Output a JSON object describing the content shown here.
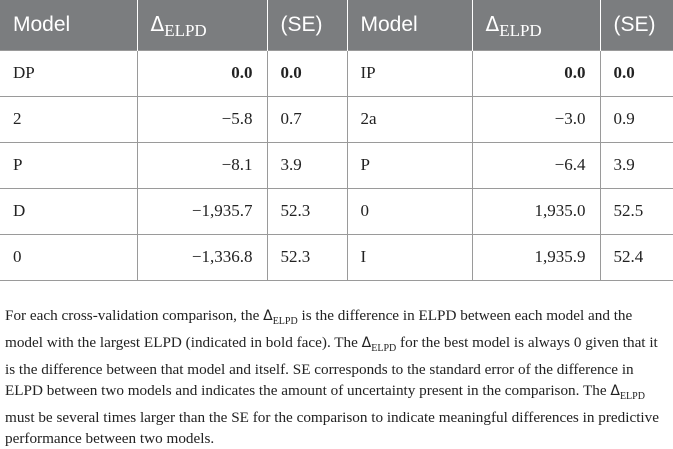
{
  "table": {
    "headers": [
      "Model",
      "Δ",
      "ELPD",
      "(SE)",
      "Model",
      "Δ",
      "ELPD",
      "(SE)"
    ],
    "rows": [
      [
        "DP",
        "0.0",
        "0.0",
        "IP",
        "0.0",
        "0.0"
      ],
      [
        "2",
        "−5.8",
        "0.7",
        "2a",
        "−3.0",
        "0.9"
      ],
      [
        "P",
        "−8.1",
        "3.9",
        "P",
        "−6.4",
        "3.9"
      ],
      [
        "D",
        "−1,935.7",
        "52.3",
        "0",
        "1,935.0",
        "52.5"
      ],
      [
        "0",
        "−1,336.8",
        "52.3",
        "I",
        "1,935.9",
        "52.4"
      ]
    ]
  },
  "footnote": {
    "s1": "For each cross-validation comparison, the ",
    "delta": "Δ",
    "sub": "ELPD",
    "s2": " is the difference in ELPD between each model and the model with the largest ELPD (indicated in bold face). The ",
    "s3": " for the best model is always 0 given that it is the difference between that model and itself. SE corresponds to the standard error of the difference in ELPD between two models and indicates the amount of uncertainty present in the comparison. The ",
    "s4": " must be several times larger than the SE for the comparison to indicate meaningful differences in predictive performance between two models."
  }
}
